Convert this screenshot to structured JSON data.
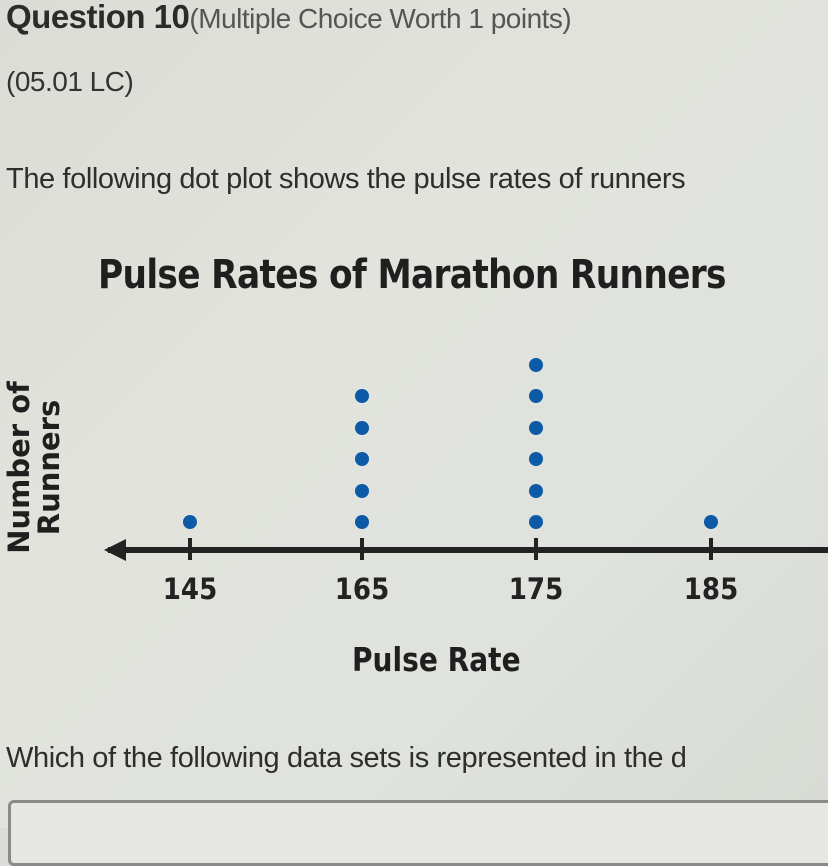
{
  "question": {
    "title": "Question 10",
    "meta": "(Multiple Choice Worth 1 points)",
    "code": "(05.01 LC)",
    "prompt": "The following dot plot shows the pulse rates of runners",
    "ask": "Which of the following data sets is represented in the d"
  },
  "chart_data": {
    "type": "dot",
    "title": "Pulse Rates of Marathon Runners",
    "xlabel": "Pulse Rate",
    "ylabel": "Number of Runners",
    "categories": [
      "145",
      "165",
      "175",
      "185"
    ],
    "values": [
      1,
      5,
      6,
      1
    ],
    "dot_color": "#0d5aa7",
    "axis": {
      "arrows": "both",
      "ticks": [
        145,
        165,
        175,
        185
      ]
    }
  },
  "labels": {
    "ylabel_line1": "Number of",
    "ylabel_line2": "Runners"
  }
}
